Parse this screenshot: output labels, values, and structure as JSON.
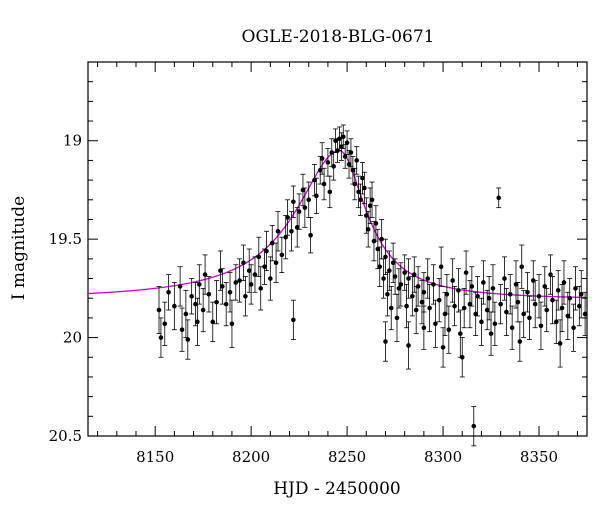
{
  "chart_data": {
    "type": "scatter",
    "title": "OGLE-2018-BLG-0671",
    "xlabel": "HJD - 2450000",
    "ylabel": "I magnitude",
    "xlim": [
      8115,
      8375
    ],
    "ylim": [
      20.5,
      18.6
    ],
    "y_inverted": true,
    "grid": false,
    "x_ticks": [
      8150,
      8200,
      8250,
      8300,
      8350
    ],
    "x_tick_labels": [
      "8150",
      "8200",
      "8250",
      "8300",
      "8350"
    ],
    "y_ticks": [
      19,
      19.5,
      20,
      20.5
    ],
    "y_tick_labels": [
      "19",
      "19.5",
      "20",
      "20.5"
    ],
    "model": {
      "type": "line",
      "color": "#cc00cc",
      "baseline_mag": 19.81,
      "peak_time": 8246,
      "peak_mag": 19.05,
      "tE_left": 26,
      "tE_right": 16
    },
    "series": [
      {
        "type": "scatter_with_errorbars",
        "color": "#000000",
        "points": [
          [
            8152,
            19.86,
            0.12
          ],
          [
            8153,
            20.0,
            0.1
          ],
          [
            8155,
            19.93,
            0.11
          ],
          [
            8157,
            19.77,
            0.09
          ],
          [
            8160,
            19.84,
            0.12
          ],
          [
            8163,
            19.74,
            0.1
          ],
          [
            8164,
            19.96,
            0.11
          ],
          [
            8166,
            19.88,
            0.12
          ],
          [
            8167,
            20.01,
            0.1
          ],
          [
            8169,
            19.79,
            0.09
          ],
          [
            8171,
            19.83,
            0.11
          ],
          [
            8172,
            19.92,
            0.12
          ],
          [
            8173,
            19.73,
            0.1
          ],
          [
            8175,
            19.86,
            0.11
          ],
          [
            8176,
            19.68,
            0.1
          ],
          [
            8178,
            19.78,
            0.09
          ],
          [
            8180,
            19.92,
            0.1
          ],
          [
            8182,
            19.82,
            0.11
          ],
          [
            8184,
            19.66,
            0.1
          ],
          [
            8185,
            19.74,
            0.09
          ],
          [
            8187,
            19.83,
            0.11
          ],
          [
            8189,
            19.77,
            0.1
          ],
          [
            8190,
            19.93,
            0.12
          ],
          [
            8192,
            19.72,
            0.09
          ],
          [
            8194,
            19.71,
            0.11
          ],
          [
            8196,
            19.62,
            0.09
          ],
          [
            8197,
            19.79,
            0.1
          ],
          [
            8199,
            19.66,
            0.11
          ],
          [
            8200,
            19.73,
            0.1
          ],
          [
            8202,
            19.68,
            0.09
          ],
          [
            8204,
            19.59,
            0.1
          ],
          [
            8205,
            19.75,
            0.11
          ],
          [
            8207,
            19.64,
            0.09
          ],
          [
            8208,
            19.56,
            0.1
          ],
          [
            8210,
            19.7,
            0.11
          ],
          [
            8211,
            19.52,
            0.09
          ],
          [
            8213,
            19.62,
            0.1
          ],
          [
            8214,
            19.46,
            0.1
          ],
          [
            8216,
            19.58,
            0.09
          ],
          [
            8218,
            19.49,
            0.11
          ],
          [
            8219,
            19.39,
            0.09
          ],
          [
            8221,
            19.46,
            0.1
          ],
          [
            8222,
            19.31,
            0.08
          ],
          [
            8224,
            19.44,
            0.1
          ],
          [
            8225,
            19.36,
            0.09
          ],
          [
            8227,
            19.25,
            0.08
          ],
          [
            8228,
            19.34,
            0.1
          ],
          [
            8230,
            19.3,
            0.09
          ],
          [
            8231,
            19.48,
            0.09
          ],
          [
            8233,
            19.2,
            0.08
          ],
          [
            8234,
            19.28,
            0.09
          ],
          [
            8236,
            19.15,
            0.07
          ],
          [
            8237,
            19.09,
            0.08
          ],
          [
            8238,
            19.22,
            0.08
          ],
          [
            8240,
            19.11,
            0.07
          ],
          [
            8241,
            19.26,
            0.08
          ],
          [
            8242,
            19.06,
            0.07
          ],
          [
            8243,
            19.13,
            0.07
          ],
          [
            8244,
            19.0,
            0.06
          ],
          [
            8245,
            19.05,
            0.06
          ],
          [
            8246,
            18.99,
            0.06
          ],
          [
            8247,
            19.03,
            0.07
          ],
          [
            8248,
            18.98,
            0.06
          ],
          [
            8249,
            19.08,
            0.06
          ],
          [
            8250,
            19.01,
            0.06
          ],
          [
            8251,
            19.12,
            0.07
          ],
          [
            8252,
            19.06,
            0.07
          ],
          [
            8253,
            19.15,
            0.07
          ],
          [
            8254,
            19.22,
            0.08
          ],
          [
            8255,
            19.1,
            0.07
          ],
          [
            8256,
            19.26,
            0.08
          ],
          [
            8257,
            19.3,
            0.08
          ],
          [
            8258,
            19.19,
            0.08
          ],
          [
            8259,
            19.24,
            0.08
          ],
          [
            8260,
            19.38,
            0.09
          ],
          [
            8261,
            19.45,
            0.09
          ],
          [
            8262,
            19.33,
            0.09
          ],
          [
            8263,
            19.3,
            0.09
          ],
          [
            8264,
            19.51,
            0.1
          ],
          [
            8265,
            19.42,
            0.09
          ],
          [
            8266,
            19.55,
            0.1
          ],
          [
            8267,
            19.64,
            0.1
          ],
          [
            8268,
            19.5,
            0.1
          ],
          [
            8269,
            19.7,
            0.1
          ],
          [
            8270,
            19.59,
            0.09
          ],
          [
            8271,
            19.78,
            0.11
          ],
          [
            8272,
            19.66,
            0.1
          ],
          [
            8273,
            19.85,
            0.11
          ],
          [
            8274,
            19.62,
            0.1
          ],
          [
            8275,
            19.69,
            0.09
          ],
          [
            8276,
            19.9,
            0.12
          ],
          [
            8277,
            19.75,
            0.1
          ],
          [
            8278,
            19.73,
            0.11
          ],
          [
            8280,
            19.67,
            0.09
          ],
          [
            8281,
            19.84,
            0.11
          ],
          [
            8282,
            19.7,
            0.1
          ],
          [
            8284,
            19.79,
            0.1
          ],
          [
            8285,
            19.68,
            0.09
          ],
          [
            8286,
            19.86,
            0.12
          ],
          [
            8287,
            19.74,
            0.1
          ],
          [
            8289,
            19.82,
            0.11
          ],
          [
            8290,
            19.77,
            0.1
          ],
          [
            8292,
            19.7,
            0.1
          ],
          [
            8293,
            19.85,
            0.12
          ],
          [
            8295,
            19.73,
            0.1
          ],
          [
            8296,
            19.93,
            0.12
          ],
          [
            8298,
            19.81,
            0.11
          ],
          [
            8299,
            19.64,
            0.1
          ],
          [
            8301,
            19.88,
            0.11
          ],
          [
            8302,
            19.78,
            0.1
          ],
          [
            8303,
            19.96,
            0.12
          ],
          [
            8305,
            19.71,
            0.11
          ],
          [
            8306,
            19.84,
            0.1
          ],
          [
            8308,
            19.76,
            0.11
          ],
          [
            8309,
            19.98,
            0.12
          ],
          [
            8311,
            19.85,
            0.1
          ],
          [
            8312,
            19.67,
            0.11
          ],
          [
            8314,
            19.83,
            0.12
          ],
          [
            8315,
            19.74,
            0.1
          ],
          [
            8317,
            19.88,
            0.11
          ],
          [
            8318,
            19.79,
            0.1
          ],
          [
            8320,
            19.92,
            0.12
          ],
          [
            8321,
            19.72,
            0.11
          ],
          [
            8323,
            19.86,
            0.1
          ],
          [
            8324,
            19.8,
            0.11
          ],
          [
            8326,
            19.75,
            0.12
          ],
          [
            8327,
            19.93,
            0.11
          ],
          [
            8329,
            19.29,
            0.05
          ],
          [
            8330,
            19.83,
            0.1
          ],
          [
            8332,
            19.7,
            0.11
          ],
          [
            8333,
            19.87,
            0.12
          ],
          [
            8335,
            19.78,
            0.1
          ],
          [
            8336,
            19.95,
            0.11
          ],
          [
            8338,
            19.73,
            0.12
          ],
          [
            8339,
            19.82,
            0.1
          ],
          [
            8341,
            19.64,
            0.11
          ],
          [
            8342,
            19.88,
            0.12
          ],
          [
            8344,
            19.77,
            0.1
          ],
          [
            8345,
            19.9,
            0.11
          ],
          [
            8347,
            19.71,
            0.1
          ],
          [
            8348,
            19.83,
            0.12
          ],
          [
            8350,
            19.79,
            0.11
          ],
          [
            8351,
            19.94,
            0.12
          ],
          [
            8353,
            19.74,
            0.1
          ],
          [
            8354,
            19.86,
            0.11
          ],
          [
            8356,
            19.68,
            0.1
          ],
          [
            8357,
            19.81,
            0.12
          ],
          [
            8359,
            19.92,
            0.11
          ],
          [
            8360,
            19.76,
            0.1
          ],
          [
            8362,
            19.85,
            0.12
          ],
          [
            8363,
            19.72,
            0.11
          ],
          [
            8365,
            19.89,
            0.12
          ],
          [
            8366,
            19.8,
            0.1
          ],
          [
            8368,
            19.95,
            0.12
          ],
          [
            8369,
            19.75,
            0.11
          ],
          [
            8371,
            19.84,
            0.1
          ],
          [
            8372,
            19.78,
            0.12
          ],
          [
            8374,
            19.88,
            0.11
          ],
          [
            8316,
            20.45,
            0.1
          ],
          [
            8310,
            20.1,
            0.1
          ],
          [
            8300,
            20.05,
            0.1
          ],
          [
            8340,
            20.02,
            0.1
          ],
          [
            8361,
            20.03,
            0.12
          ],
          [
            8270,
            20.02,
            0.1
          ],
          [
            8222,
            19.91,
            0.1
          ],
          [
            8282,
            20.04,
            0.12
          ],
          [
            8290,
            19.95,
            0.11
          ],
          [
            8325,
            19.98,
            0.11
          ]
        ]
      }
    ]
  }
}
